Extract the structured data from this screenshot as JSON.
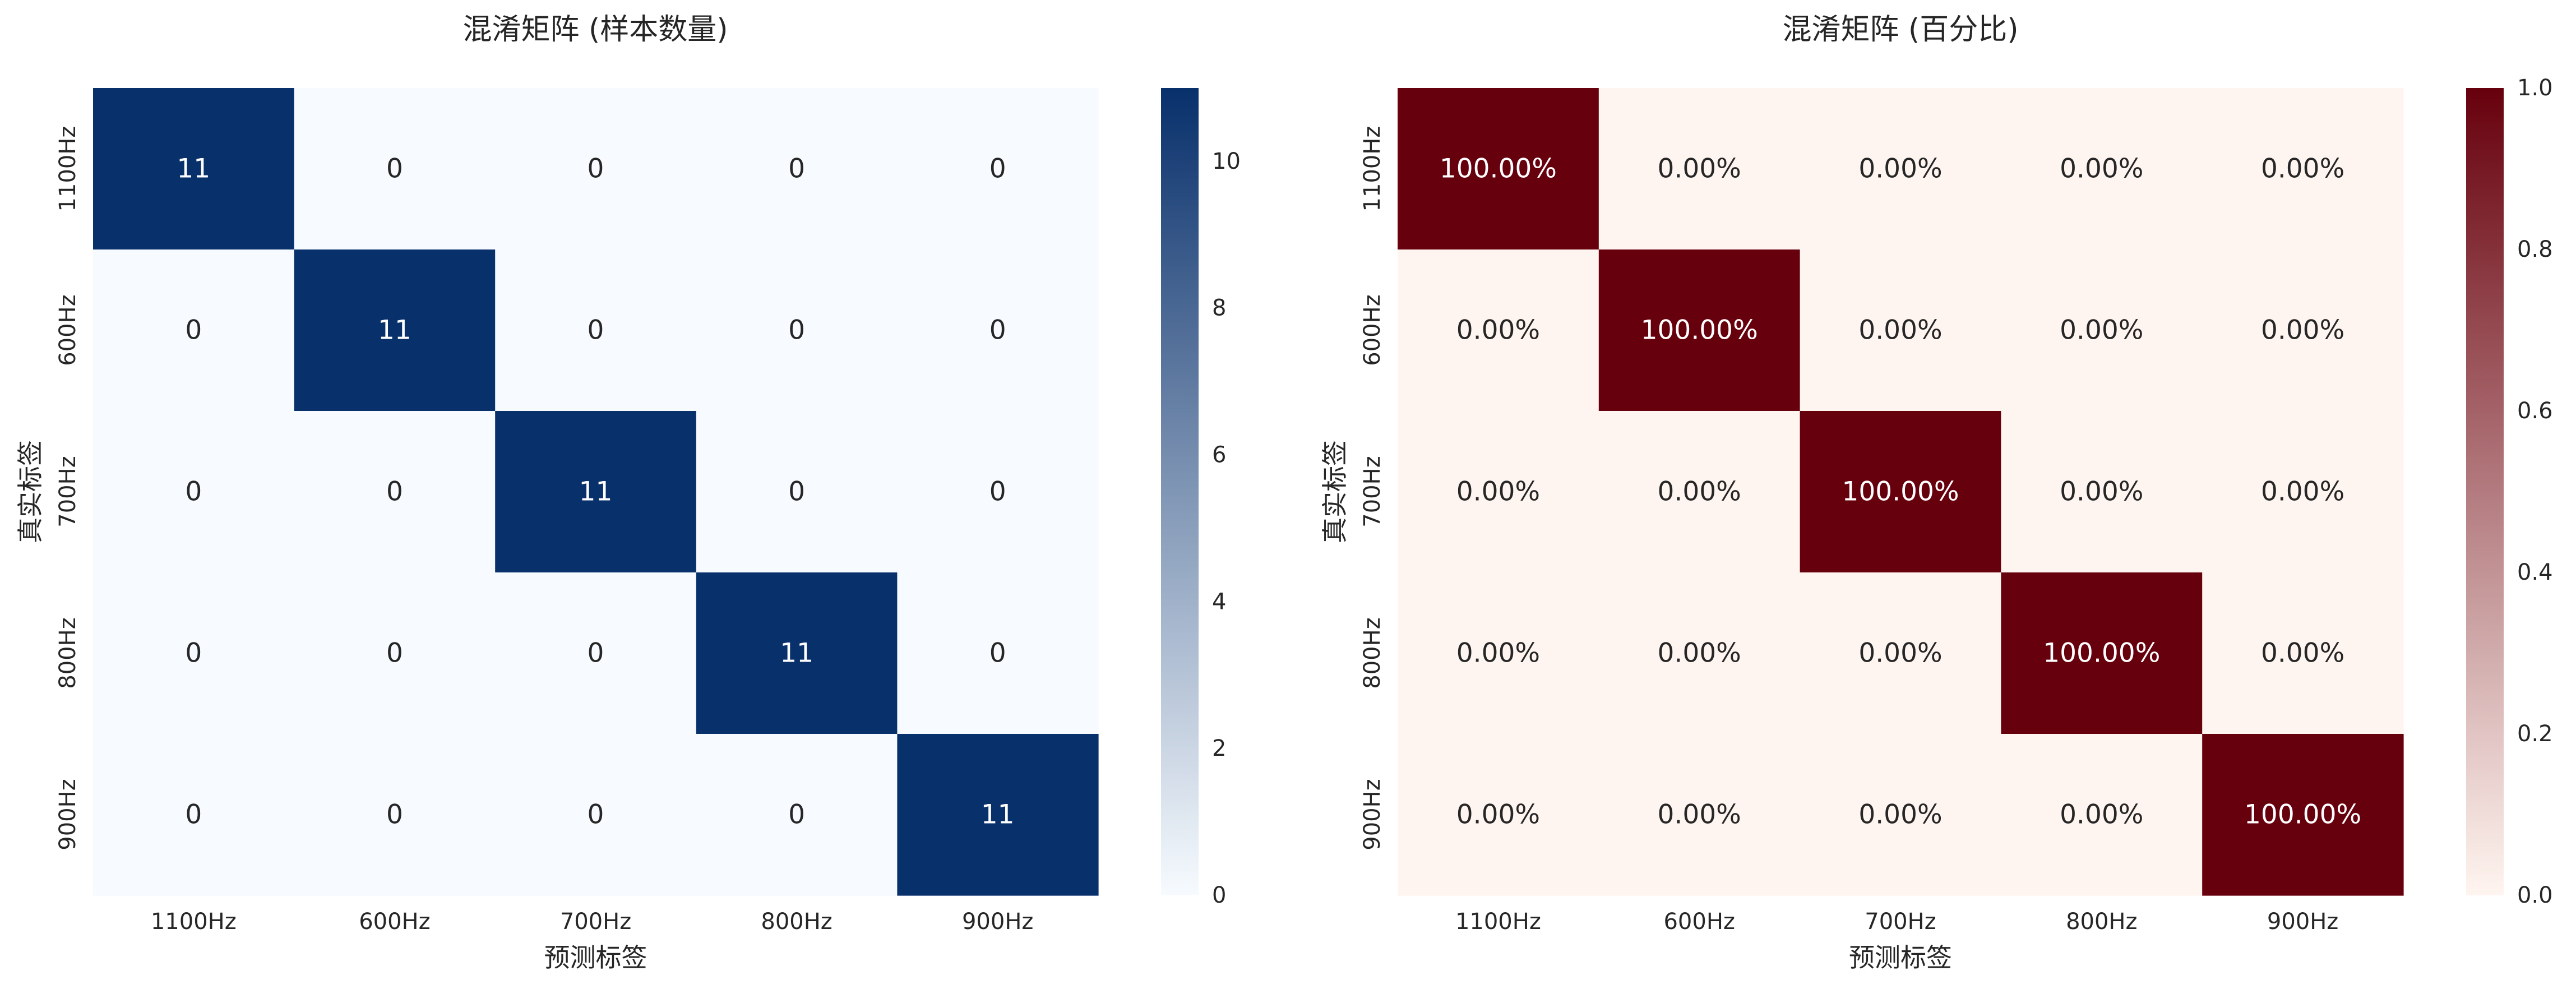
{
  "chart_data": [
    {
      "type": "heatmap",
      "title": "混淆矩阵 (样本数量)",
      "xlabel": "预测标签",
      "ylabel": "真实标签",
      "rows": [
        "1100Hz",
        "600Hz",
        "700Hz",
        "800Hz",
        "900Hz"
      ],
      "cols": [
        "1100Hz",
        "600Hz",
        "700Hz",
        "800Hz",
        "900Hz"
      ],
      "values": [
        [
          11,
          0,
          0,
          0,
          0
        ],
        [
          0,
          11,
          0,
          0,
          0
        ],
        [
          0,
          0,
          11,
          0,
          0
        ],
        [
          0,
          0,
          0,
          11,
          0
        ],
        [
          0,
          0,
          0,
          0,
          11
        ]
      ],
      "cell_labels": [
        [
          "11",
          "0",
          "0",
          "0",
          "0"
        ],
        [
          "0",
          "11",
          "0",
          "0",
          "0"
        ],
        [
          "0",
          "0",
          "11",
          "0",
          "0"
        ],
        [
          "0",
          "0",
          "0",
          "11",
          "0"
        ],
        [
          "0",
          "0",
          "0",
          "0",
          "11"
        ]
      ],
      "colormap": "Blues",
      "color_low": "#f7fbff",
      "color_high": "#08306b",
      "vmin": 0,
      "vmax": 11,
      "colorbar_ticks": [
        0,
        2,
        4,
        6,
        8,
        10
      ],
      "colorbar_tick_labels": [
        "0",
        "2",
        "4",
        "6",
        "8",
        "10"
      ]
    },
    {
      "type": "heatmap",
      "title": "混淆矩阵 (百分比)",
      "xlabel": "预测标签",
      "ylabel": "真实标签",
      "rows": [
        "1100Hz",
        "600Hz",
        "700Hz",
        "800Hz",
        "900Hz"
      ],
      "cols": [
        "1100Hz",
        "600Hz",
        "700Hz",
        "800Hz",
        "900Hz"
      ],
      "values": [
        [
          1.0,
          0.0,
          0.0,
          0.0,
          0.0
        ],
        [
          0.0,
          1.0,
          0.0,
          0.0,
          0.0
        ],
        [
          0.0,
          0.0,
          1.0,
          0.0,
          0.0
        ],
        [
          0.0,
          0.0,
          0.0,
          1.0,
          0.0
        ],
        [
          0.0,
          0.0,
          0.0,
          0.0,
          1.0
        ]
      ],
      "cell_labels": [
        [
          "100.00%",
          "0.00%",
          "0.00%",
          "0.00%",
          "0.00%"
        ],
        [
          "0.00%",
          "100.00%",
          "0.00%",
          "0.00%",
          "0.00%"
        ],
        [
          "0.00%",
          "0.00%",
          "100.00%",
          "0.00%",
          "0.00%"
        ],
        [
          "0.00%",
          "0.00%",
          "0.00%",
          "100.00%",
          "0.00%"
        ],
        [
          "0.00%",
          "0.00%",
          "0.00%",
          "0.00%",
          "100.00%"
        ]
      ],
      "colormap": "Reds",
      "color_low": "#fff5f0",
      "color_high": "#67000d",
      "vmin": 0.0,
      "vmax": 1.0,
      "colorbar_ticks": [
        0.0,
        0.2,
        0.4,
        0.6,
        0.8,
        1.0
      ],
      "colorbar_tick_labels": [
        "0.0",
        "0.2",
        "0.4",
        "0.6",
        "0.8",
        "1.0"
      ]
    }
  ]
}
